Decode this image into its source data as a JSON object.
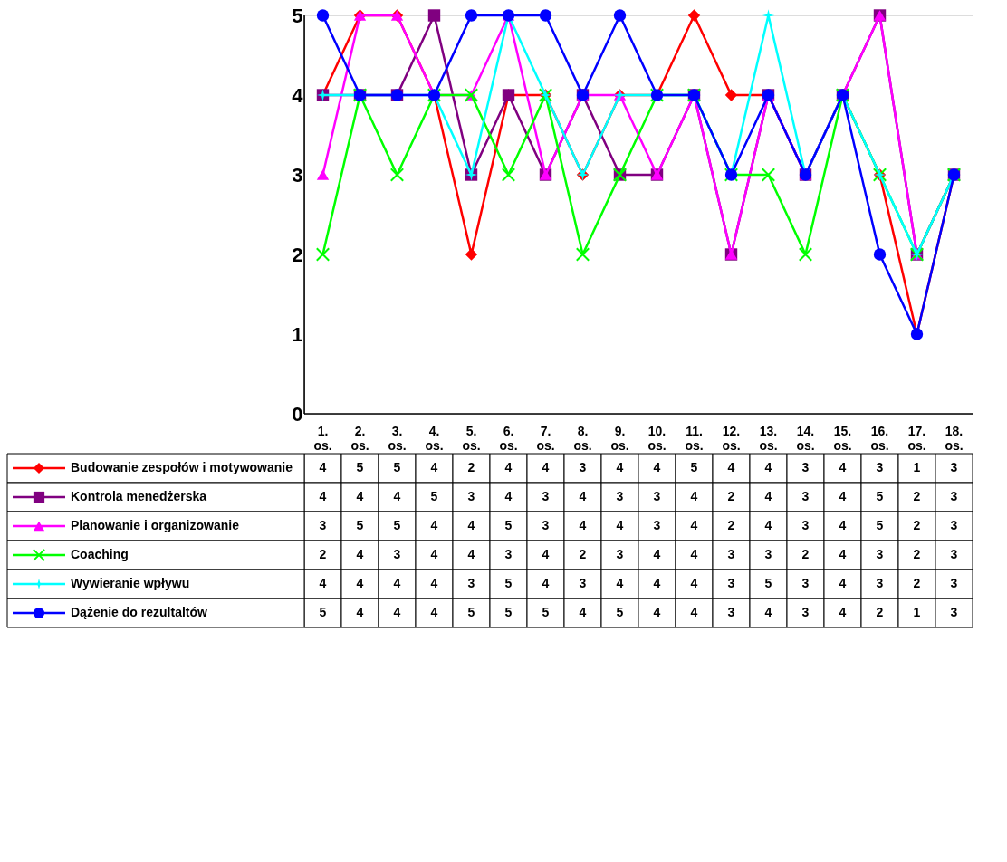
{
  "chart_data": {
    "type": "line",
    "categories": [
      "1. os.",
      "2. os.",
      "3. os.",
      "4. os.",
      "5. os.",
      "6. os.",
      "7. os.",
      "8. os.",
      "9. os.",
      "10. os.",
      "11. os.",
      "12. os.",
      "13. os.",
      "14. os.",
      "15. os.",
      "16. os.",
      "17. os.",
      "18. os."
    ],
    "ylim": [
      0,
      5
    ],
    "yticks": [
      0,
      1,
      2,
      3,
      4,
      5
    ],
    "grid": false,
    "legend": "bottom left",
    "data_labels": true,
    "series": [
      {
        "name": "Budowanie zespołów i motywowanie",
        "color": "#ff0000",
        "marker": "diamond",
        "values": [
          4,
          5,
          5,
          4,
          2,
          4,
          4,
          3,
          4,
          4,
          5,
          4,
          4,
          3,
          4,
          3,
          1,
          3
        ]
      },
      {
        "name": "Kontrola menedżerska",
        "color": "#800080",
        "marker": "square",
        "values": [
          4,
          4,
          4,
          5,
          3,
          4,
          3,
          4,
          3,
          3,
          4,
          2,
          4,
          3,
          4,
          5,
          2,
          3
        ]
      },
      {
        "name": "Planowanie i organizowanie",
        "color": "#ff00ff",
        "marker": "triangle",
        "values": [
          3,
          5,
          5,
          4,
          4,
          5,
          3,
          4,
          4,
          3,
          4,
          2,
          4,
          3,
          4,
          5,
          2,
          3
        ]
      },
      {
        "name": "Coaching",
        "color": "#00ff00",
        "marker": "cross",
        "values": [
          2,
          4,
          3,
          4,
          4,
          3,
          4,
          2,
          3,
          4,
          4,
          3,
          3,
          2,
          4,
          3,
          2,
          3
        ]
      },
      {
        "name": "Wywieranie wpływu",
        "color": "#00ffff",
        "marker": "star",
        "values": [
          4,
          4,
          4,
          4,
          3,
          5,
          4,
          3,
          4,
          4,
          4,
          3,
          5,
          3,
          4,
          3,
          2,
          3
        ]
      },
      {
        "name": "Dążenie do rezultaltów",
        "color": "#0000ff",
        "marker": "circle",
        "values": [
          5,
          4,
          4,
          4,
          5,
          5,
          5,
          4,
          5,
          4,
          4,
          3,
          4,
          3,
          4,
          2,
          1,
          3
        ]
      }
    ]
  }
}
